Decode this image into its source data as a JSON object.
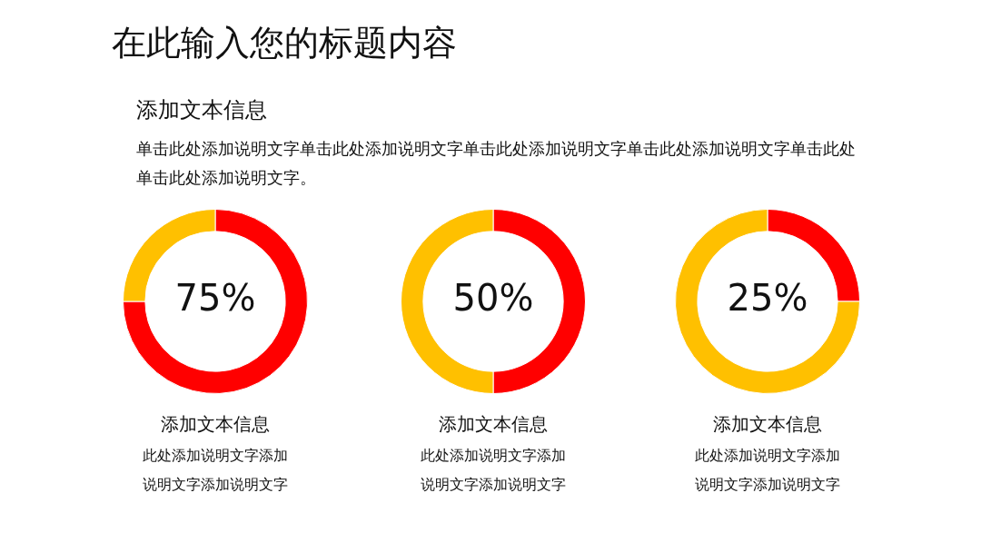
{
  "chart_data": [
    {
      "type": "other",
      "title": "在此输入您的标题内容",
      "subtitle": "添加文本信息",
      "annotations": [
        "单击此处添加说明文字单击此处添加说明文字单击此处添加说明文字单击此处添加说明文字单击此处单击此处添加说明文字。"
      ]
    },
    {
      "type": "donut",
      "title": "添加文本信息",
      "categories": [
        null,
        null
      ],
      "values": [
        75,
        25
      ],
      "colors": [
        "#ff0000",
        "#ffc000"
      ],
      "value_labels": [
        "75%",
        null
      ],
      "annotations": [
        "此处添加说明文字添加",
        "说明文字添加说明文字"
      ]
    },
    {
      "type": "donut",
      "title": "添加文本信息",
      "categories": [
        null,
        null
      ],
      "values": [
        50,
        50
      ],
      "colors": [
        "#ff0000",
        "#ffc000"
      ],
      "value_labels": [
        "50%",
        null
      ],
      "annotations": [
        "此处添加说明文字添加",
        "说明文字添加说明文字"
      ]
    },
    {
      "type": "donut",
      "title": "添加文本信息",
      "categories": [
        null,
        null
      ],
      "values": [
        25,
        75
      ],
      "colors": [
        "#ff0000",
        "#ffc000"
      ],
      "value_labels": [
        "25%",
        null
      ],
      "annotations": [
        "此处添加说明文字添加",
        "说明文字添加说明文字"
      ]
    }
  ]
}
